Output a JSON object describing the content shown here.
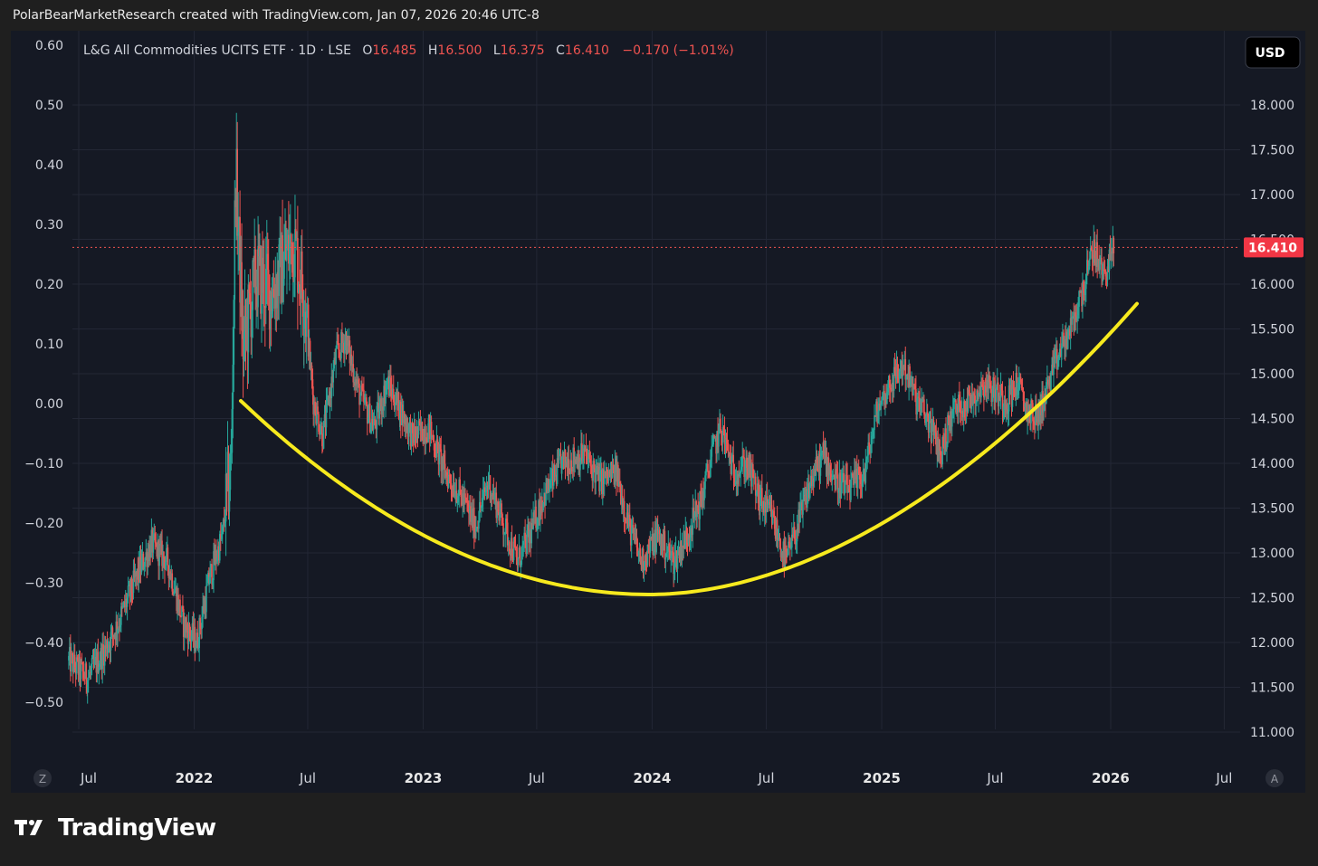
{
  "header": "PolarBearMarketResearch created with TradingView.com, Jan 07, 2026 20:46 UTC-8",
  "legend": {
    "symbol": "L&G All Commodities UCITS ETF · 1D · LSE",
    "open_label": "O",
    "open": "16.485",
    "high_label": "H",
    "high": "16.500",
    "low_label": "L",
    "low": "16.375",
    "close_label": "C",
    "close": "16.410",
    "change": "−0.170 (−1.01%)"
  },
  "currency_button": "USD",
  "last_price_label": "16.410",
  "corner_left": "Z",
  "corner_right": "A",
  "footer_brand": "TradingView",
  "colors": {
    "up": "#26a69a",
    "down": "#ef5350",
    "annotation": "#f7ea1e",
    "price_line": "#ef5350"
  },
  "chart_data": {
    "type": "candlestick",
    "right_axis": {
      "ticks": [
        "11.000",
        "11.500",
        "12.000",
        "12.500",
        "13.000",
        "13.500",
        "14.000",
        "14.500",
        "15.000",
        "15.500",
        "16.000",
        "16.500",
        "17.000",
        "17.500",
        "18.000"
      ],
      "range": [
        10.5,
        18.5
      ]
    },
    "left_axis": {
      "ticks": [
        "−0.50",
        "−0.40",
        "−0.30",
        "−0.20",
        "−0.10",
        "0.00",
        "0.10",
        "0.20",
        "0.30",
        "0.40",
        "0.50",
        "0.60"
      ]
    },
    "x_axis": {
      "labels": [
        "Jul",
        "2022",
        "Jul",
        "2023",
        "Jul",
        "2024",
        "Jul",
        "2025",
        "Jul",
        "2026",
        "Jul"
      ]
    },
    "price_path": [
      [
        "2021-06-15",
        11.8
      ],
      [
        "2021-07-15",
        11.6
      ],
      [
        "2021-08-10",
        11.9
      ],
      [
        "2021-09-01",
        12.2
      ],
      [
        "2021-10-05",
        12.8
      ],
      [
        "2021-10-25",
        13.1
      ],
      [
        "2021-11-20",
        12.9
      ],
      [
        "2021-12-15",
        12.2
      ],
      [
        "2022-01-05",
        12.0
      ],
      [
        "2022-01-25",
        12.7
      ],
      [
        "2022-02-15",
        13.2
      ],
      [
        "2022-03-01",
        14.0
      ],
      [
        "2022-03-08",
        17.3
      ],
      [
        "2022-03-20",
        15.3
      ],
      [
        "2022-04-10",
        16.1
      ],
      [
        "2022-05-05",
        15.9
      ],
      [
        "2022-06-08",
        16.5
      ],
      [
        "2022-06-25",
        15.9
      ],
      [
        "2022-07-10",
        14.7
      ],
      [
        "2022-07-25",
        14.3
      ],
      [
        "2022-08-15",
        15.2
      ],
      [
        "2022-08-30",
        15.4
      ],
      [
        "2022-09-20",
        14.8
      ],
      [
        "2022-10-15",
        14.4
      ],
      [
        "2022-11-05",
        14.9
      ],
      [
        "2022-11-25",
        14.6
      ],
      [
        "2022-12-15",
        14.3
      ],
      [
        "2023-01-10",
        14.4
      ],
      [
        "2023-02-05",
        13.9
      ],
      [
        "2023-03-05",
        13.6
      ],
      [
        "2023-03-25",
        13.3
      ],
      [
        "2023-04-15",
        13.8
      ],
      [
        "2023-05-10",
        13.3
      ],
      [
        "2023-05-31",
        12.9
      ],
      [
        "2023-06-20",
        13.2
      ],
      [
        "2023-07-10",
        13.6
      ],
      [
        "2023-08-10",
        14.0
      ],
      [
        "2023-09-15",
        14.1
      ],
      [
        "2023-10-10",
        13.8
      ],
      [
        "2023-11-05",
        13.9
      ],
      [
        "2023-11-25",
        13.3
      ],
      [
        "2023-12-15",
        12.9
      ],
      [
        "2024-01-10",
        13.2
      ],
      [
        "2024-02-05",
        12.9
      ],
      [
        "2024-02-25",
        13.2
      ],
      [
        "2024-03-20",
        13.6
      ],
      [
        "2024-04-05",
        14.1
      ],
      [
        "2024-04-20",
        14.4
      ],
      [
        "2024-05-10",
        13.9
      ],
      [
        "2024-05-31",
        14.0
      ],
      [
        "2024-06-20",
        13.6
      ],
      [
        "2024-07-10",
        13.4
      ],
      [
        "2024-08-01",
        12.9
      ],
      [
        "2024-08-20",
        13.3
      ],
      [
        "2024-09-10",
        13.8
      ],
      [
        "2024-09-30",
        14.1
      ],
      [
        "2024-10-20",
        13.8
      ],
      [
        "2024-11-10",
        13.7
      ],
      [
        "2024-12-05",
        13.9
      ],
      [
        "2024-12-25",
        14.6
      ],
      [
        "2025-01-15",
        14.9
      ],
      [
        "2025-02-05",
        15.1
      ],
      [
        "2025-02-25",
        14.7
      ],
      [
        "2025-03-15",
        14.5
      ],
      [
        "2025-04-05",
        14.1
      ],
      [
        "2025-04-25",
        14.6
      ],
      [
        "2025-05-20",
        14.7
      ],
      [
        "2025-06-15",
        14.9
      ],
      [
        "2025-06-30",
        14.8
      ],
      [
        "2025-07-20",
        14.7
      ],
      [
        "2025-08-05",
        14.9
      ],
      [
        "2025-08-20",
        14.6
      ],
      [
        "2025-09-05",
        14.5
      ],
      [
        "2025-09-25",
        14.9
      ],
      [
        "2025-10-15",
        15.3
      ],
      [
        "2025-10-30",
        15.5
      ],
      [
        "2025-11-20",
        16.0
      ],
      [
        "2025-12-05",
        16.4
      ],
      [
        "2025-12-20",
        16.1
      ],
      [
        "2026-01-07",
        16.41
      ]
    ],
    "last_price": 16.41,
    "annotation": "cup-shaped arc"
  }
}
